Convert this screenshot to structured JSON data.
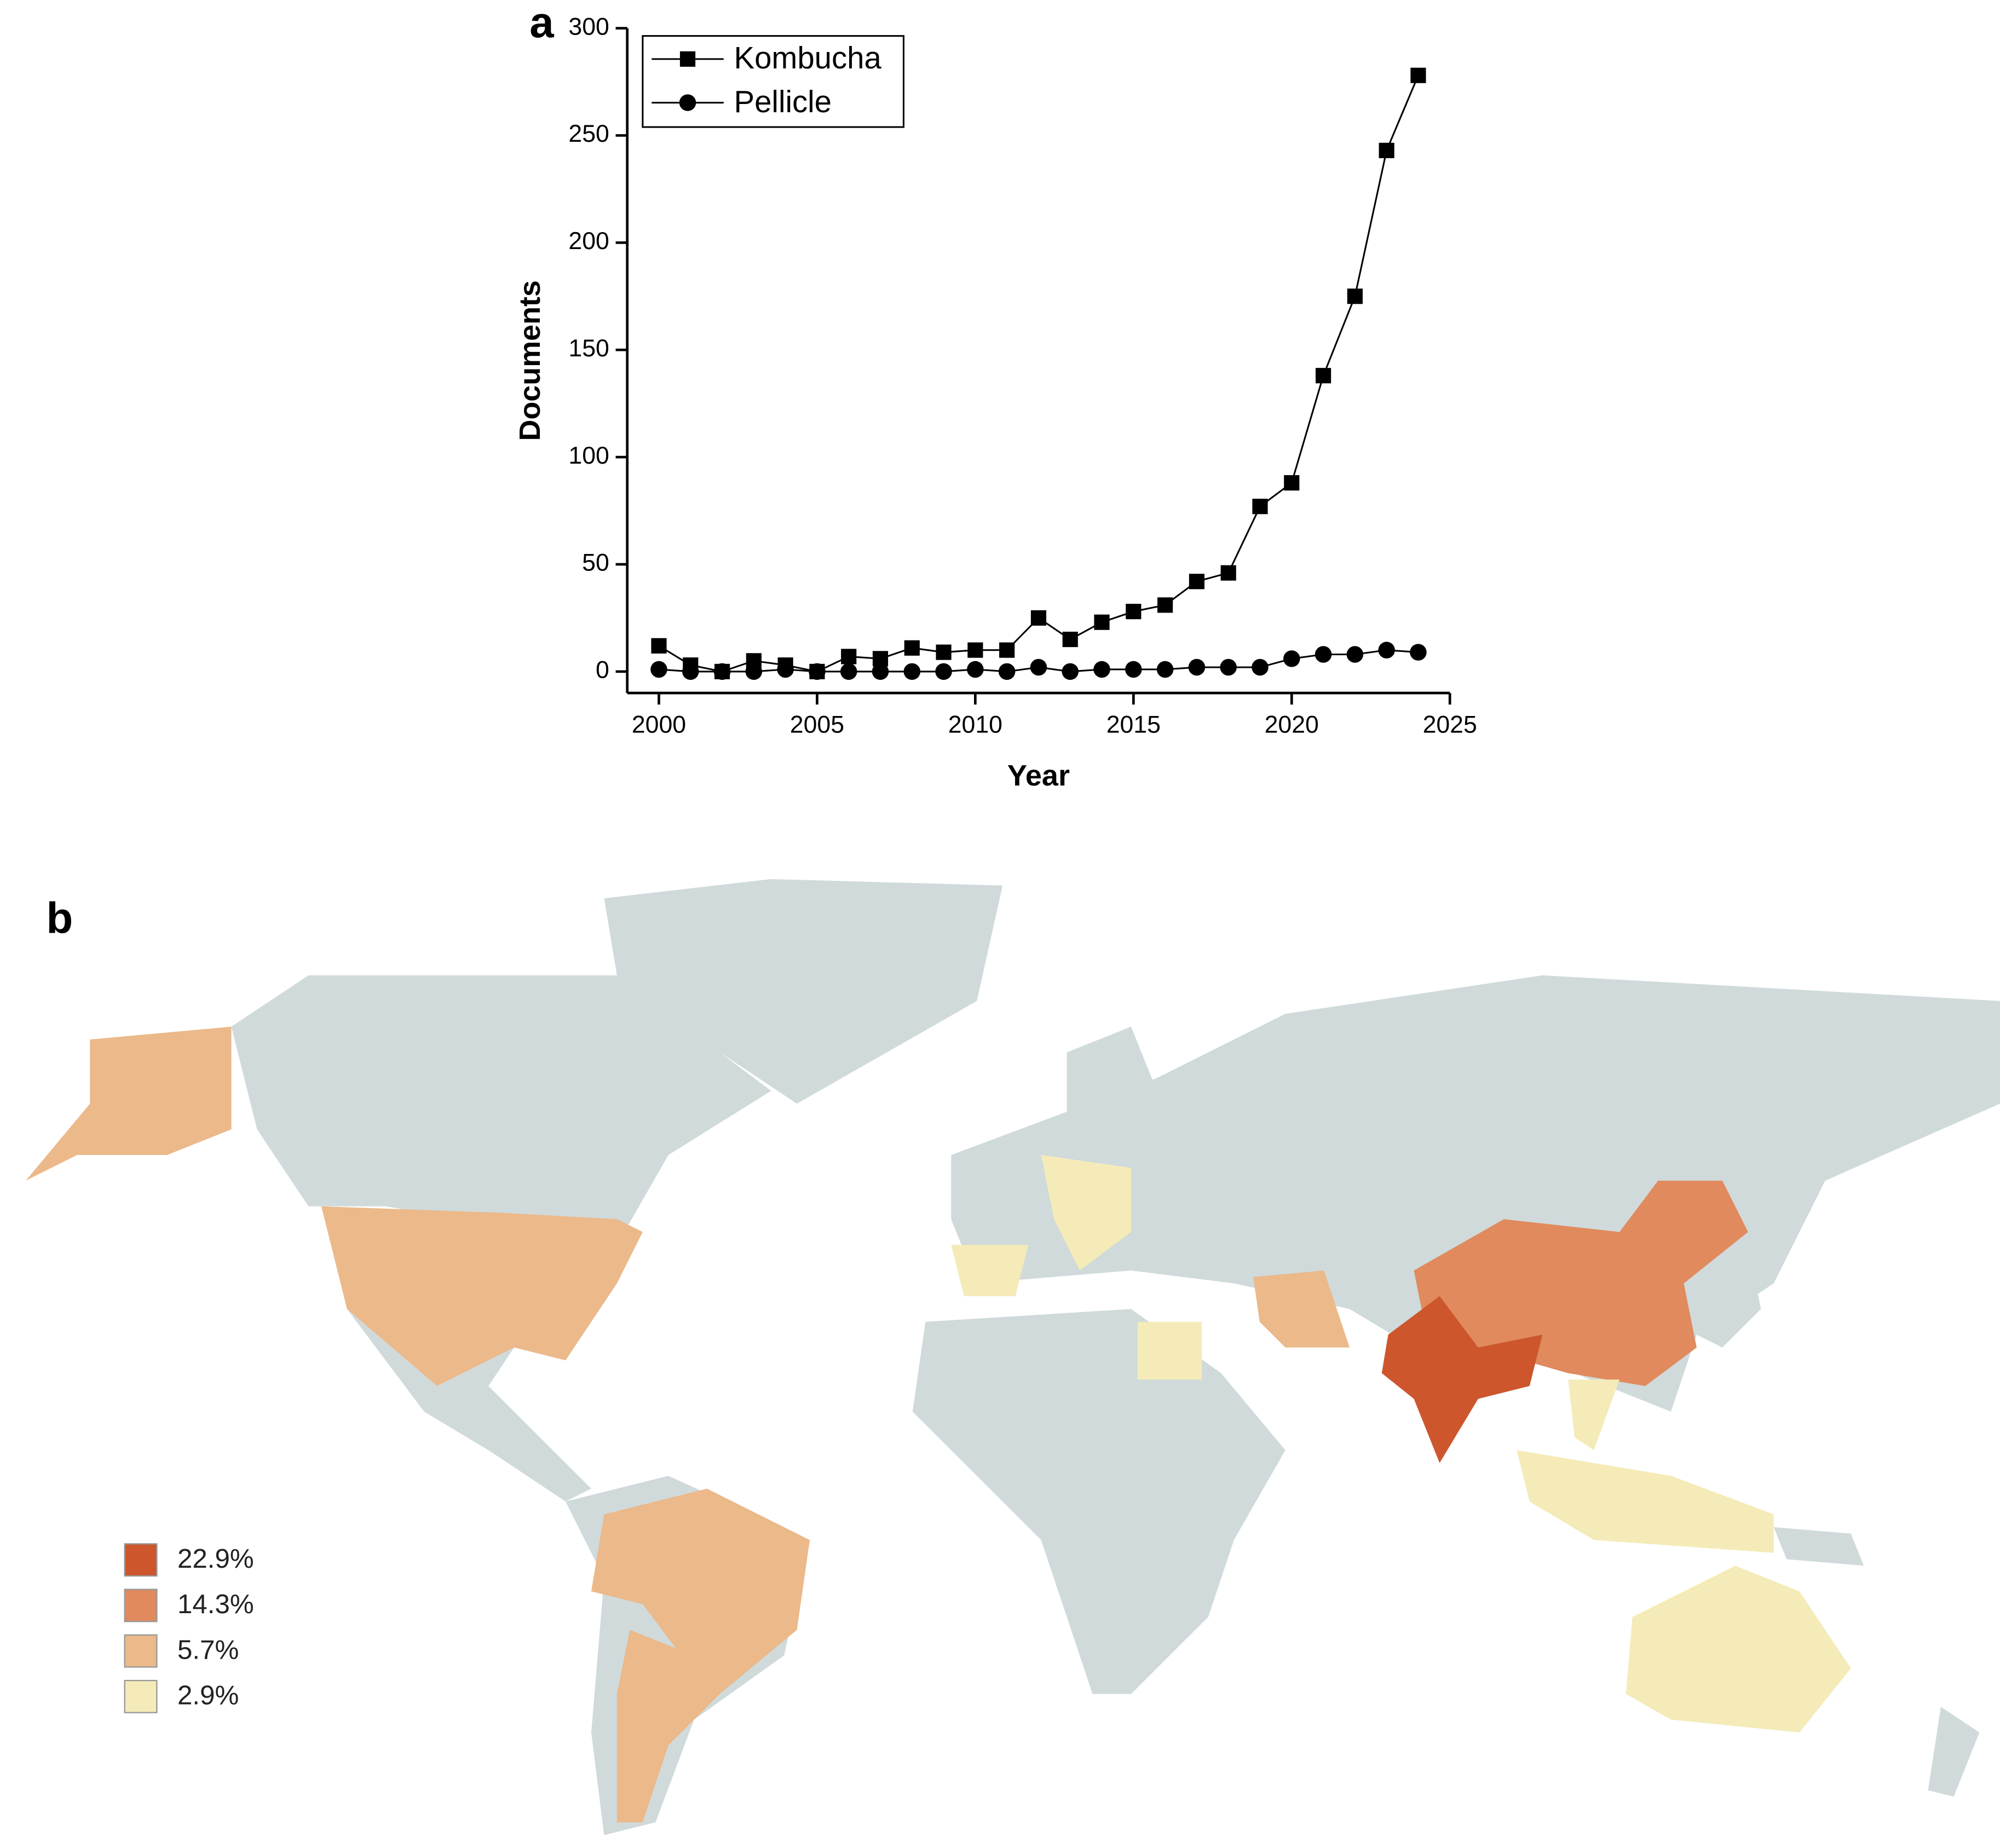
{
  "chart_data": [
    {
      "type": "line",
      "panel_label": "a",
      "x_label": "Year",
      "y_label": "Documents",
      "x": [
        2000,
        2001,
        2002,
        2003,
        2004,
        2005,
        2006,
        2007,
        2008,
        2009,
        2010,
        2011,
        2012,
        2013,
        2014,
        2015,
        2016,
        2017,
        2018,
        2019,
        2020,
        2021,
        2022,
        2023,
        2024
      ],
      "series": [
        {
          "name": "Kombucha",
          "color": "#000000",
          "marker": "square",
          "values": [
            12,
            3,
            0,
            5,
            3,
            0,
            7,
            6,
            11,
            9,
            10,
            10,
            25,
            15,
            23,
            28,
            31,
            42,
            46,
            77,
            88,
            138,
            175,
            243,
            278
          ]
        },
        {
          "name": "Pellicle",
          "color": "#000000",
          "marker": "circle",
          "values": [
            1,
            0,
            0,
            0,
            1,
            0,
            0,
            0,
            0,
            0,
            1,
            0,
            2,
            0,
            1,
            1,
            1,
            2,
            2,
            2,
            6,
            8,
            8,
            10,
            9
          ]
        }
      ],
      "xlim": [
        1999,
        2025
      ],
      "xticks": [
        2000,
        2005,
        2010,
        2015,
        2020,
        2025
      ],
      "ylim": [
        -10,
        300
      ],
      "yticks": [
        0,
        50,
        100,
        150,
        200,
        250,
        300
      ],
      "grid": false,
      "legend": "top-left"
    },
    {
      "type": "map",
      "panel_label": "b",
      "values": [
        22.9,
        14.3,
        5.7,
        2.9
      ],
      "value_labels": [
        "22.9%",
        "14.3%",
        "5.7%",
        "2.9%"
      ],
      "colors": [
        "#cd562c",
        "#e08a5e",
        "#ebb98a",
        "#f5ebb8"
      ],
      "legend": "bottom-left"
    }
  ]
}
